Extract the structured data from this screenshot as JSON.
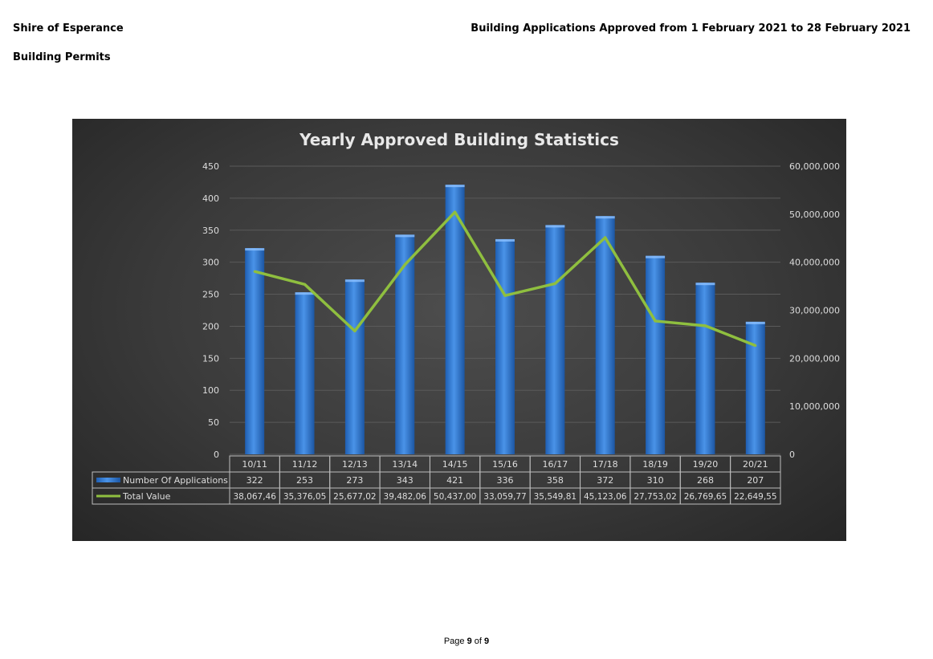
{
  "header": {
    "organization": "Shire of Esperance",
    "section": "Building Permits",
    "report_title": "Building Applications Approved from 1 February 2021 to 28 February 2021"
  },
  "footer": {
    "prefix": "Page",
    "current": "9",
    "of": "of",
    "total": "9"
  },
  "colors": {
    "bar": "#3b7fd6",
    "line": "#8fbf3f",
    "text": "#dddddd",
    "grid": "#5a5a5a"
  },
  "chart_data": {
    "type": "bar",
    "title": "Yearly Approved Building Statistics",
    "categories": [
      "10/11",
      "11/12",
      "12/13",
      "13/14",
      "14/15",
      "15/16",
      "16/17",
      "17/18",
      "18/19",
      "19/20",
      "20/21"
    ],
    "series": [
      {
        "name": "Number Of Applications",
        "type": "bar",
        "axis": "left",
        "values": [
          322,
          253,
          273,
          343,
          421,
          336,
          358,
          372,
          310,
          268,
          207
        ]
      },
      {
        "name": "Total Value",
        "type": "line",
        "axis": "right",
        "values": [
          38067460,
          35376050,
          25677020,
          39482060,
          50437000,
          33059770,
          35549810,
          45123060,
          27753020,
          26769650,
          22649550
        ]
      }
    ],
    "table_value_labels": [
      "38,067,46",
      "35,376,05",
      "25,677,02",
      "39,482,06",
      "50,437,00",
      "33,059,77",
      "35,549,81",
      "45,123,06",
      "27,753,02",
      "26,769,65",
      "22,649,55"
    ],
    "left_axis": {
      "ylim": [
        0,
        450
      ],
      "ticks": [
        "0",
        "50",
        "100",
        "150",
        "200",
        "250",
        "300",
        "350",
        "400",
        "450"
      ]
    },
    "right_axis": {
      "ylim": [
        0,
        60000000
      ],
      "ticks": [
        "0",
        "10,000,000",
        "20,000,000",
        "30,000,000",
        "40,000,000",
        "50,000,000",
        "60,000,000"
      ]
    },
    "grid": true,
    "legend_placement": "data-table"
  }
}
